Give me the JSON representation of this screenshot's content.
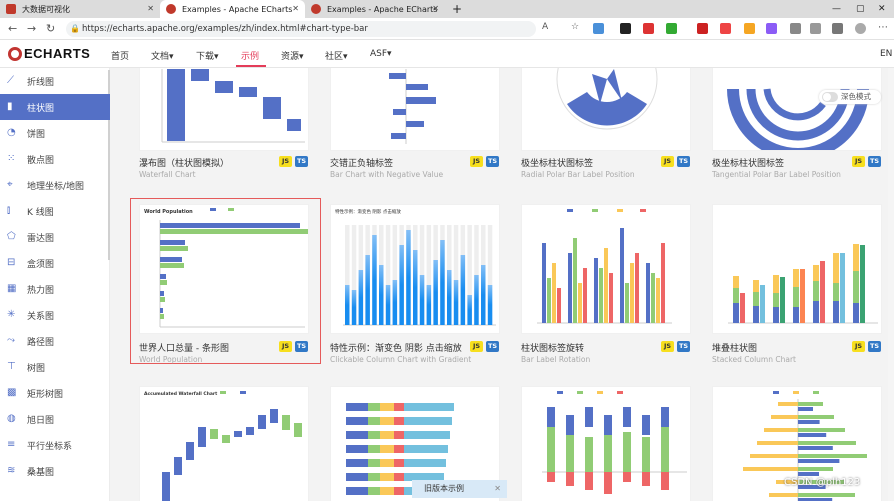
{
  "tabs": [
    {
      "title": "大数据可视化",
      "icon_color": "#c0392b"
    },
    {
      "title": "Examples - Apache ECharts",
      "icon_color": "#c0392b"
    },
    {
      "title": "Examples - Apache ECharts",
      "icon_color": "#c0392b"
    }
  ],
  "url": "https://echarts.apache.org/examples/zh/index.html#chart-type-bar",
  "logo_text": "ECHARTS",
  "nav": {
    "home": "首页",
    "docs": "文档",
    "download": "下载",
    "examples": "示例",
    "resources": "资源",
    "community": "社区",
    "asf": "ASF",
    "lang": "EN"
  },
  "sidebar": [
    {
      "label": "折线图",
      "icon": "line-chart-icon"
    },
    {
      "label": "柱状图",
      "icon": "bar-chart-icon"
    },
    {
      "label": "饼图",
      "icon": "pie-chart-icon"
    },
    {
      "label": "散点图",
      "icon": "scatter-icon"
    },
    {
      "label": "地理坐标/地图",
      "icon": "map-icon"
    },
    {
      "label": "K 线图",
      "icon": "candlestick-icon"
    },
    {
      "label": "雷达图",
      "icon": "radar-icon"
    },
    {
      "label": "盒须图",
      "icon": "boxplot-icon"
    },
    {
      "label": "热力图",
      "icon": "heatmap-icon"
    },
    {
      "label": "关系图",
      "icon": "graph-icon"
    },
    {
      "label": "路径图",
      "icon": "lines-icon"
    },
    {
      "label": "树图",
      "icon": "tree-icon"
    },
    {
      "label": "矩形树图",
      "icon": "treemap-icon"
    },
    {
      "label": "旭日图",
      "icon": "sunburst-icon"
    },
    {
      "label": "平行坐标系",
      "icon": "parallel-icon"
    },
    {
      "label": "桑基图",
      "icon": "sankey-icon"
    }
  ],
  "dark_mode_label": "深色模式",
  "cards_row1": [
    {
      "title": "瀑布图（柱状图模拟）",
      "subtitle": "Waterfall Chart"
    },
    {
      "title": "交错正负轴标签",
      "subtitle": "Bar Chart with Negative Value"
    },
    {
      "title": "极坐标柱状图标签",
      "subtitle": "Radial Polar Bar Label Position"
    },
    {
      "title": "极坐标柱状图标签",
      "subtitle": "Tangential Polar Bar Label Position"
    }
  ],
  "cards_row2": [
    {
      "title": "世界人口总量 - 条形图",
      "subtitle": "World Population"
    },
    {
      "title": "特性示例：渐变色 阴影 点击缩放",
      "subtitle": "Clickable Column Chart with Gradient"
    },
    {
      "title": "柱状图标签旋转",
      "subtitle": "Bar Label Rotation"
    },
    {
      "title": "堆叠柱状图",
      "subtitle": "Stacked Column Chart"
    }
  ],
  "badge_js": "JS",
  "badge_ts": "TS",
  "thumb_text": {
    "world_pop_title": "World Population",
    "gradient_title": "特性示例：渐变色 阴影 点击缩放",
    "waterfall_title": "Accumulated Waterfall Chart"
  },
  "old_version": "旧版本示例",
  "watermark": "CSDN @plh123"
}
